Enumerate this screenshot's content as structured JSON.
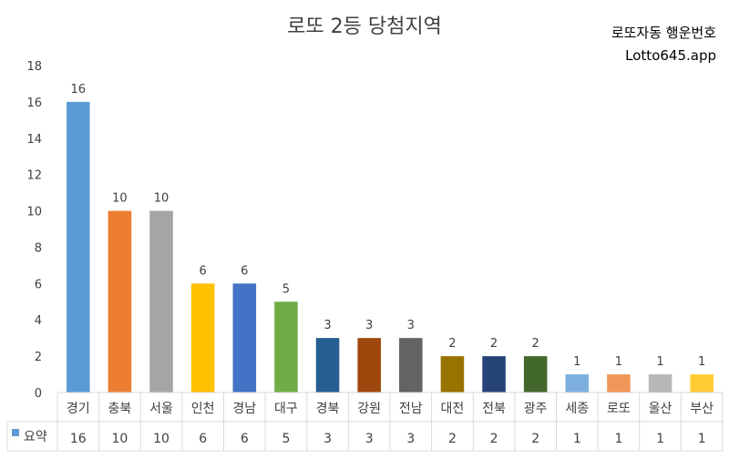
{
  "chart_data": {
    "type": "bar",
    "title": "로또 2등 당첨지역",
    "watermark_line1": "로또자동 행운번호",
    "watermark_line2": "Lotto645.app",
    "categories": [
      "경기",
      "충북",
      "서울",
      "인천",
      "경남",
      "대구",
      "경북",
      "강원",
      "전남",
      "대전",
      "전북",
      "광주",
      "세종",
      "로또",
      "울산",
      "부산"
    ],
    "series": [
      {
        "name": "요약",
        "values": [
          16,
          10,
          10,
          6,
          6,
          5,
          3,
          3,
          3,
          2,
          2,
          2,
          1,
          1,
          1,
          1
        ],
        "colors": [
          "#5B9BD5",
          "#ED7D31",
          "#A5A5A5",
          "#FFC000",
          "#4472C4",
          "#70AD47",
          "#255E91",
          "#9E480E",
          "#636363",
          "#997300",
          "#264478",
          "#43682B",
          "#7CAFDD",
          "#F1975A",
          "#B7B7B7",
          "#FFCD33"
        ]
      }
    ],
    "ylim": [
      0,
      18
    ],
    "yticks": [
      0,
      2,
      4,
      6,
      8,
      10,
      12,
      14,
      16,
      18
    ],
    "grid": false,
    "legend": "data-table-bottom",
    "legend_color": "#5B9BD5",
    "axis_color": "#D9D9D9"
  }
}
